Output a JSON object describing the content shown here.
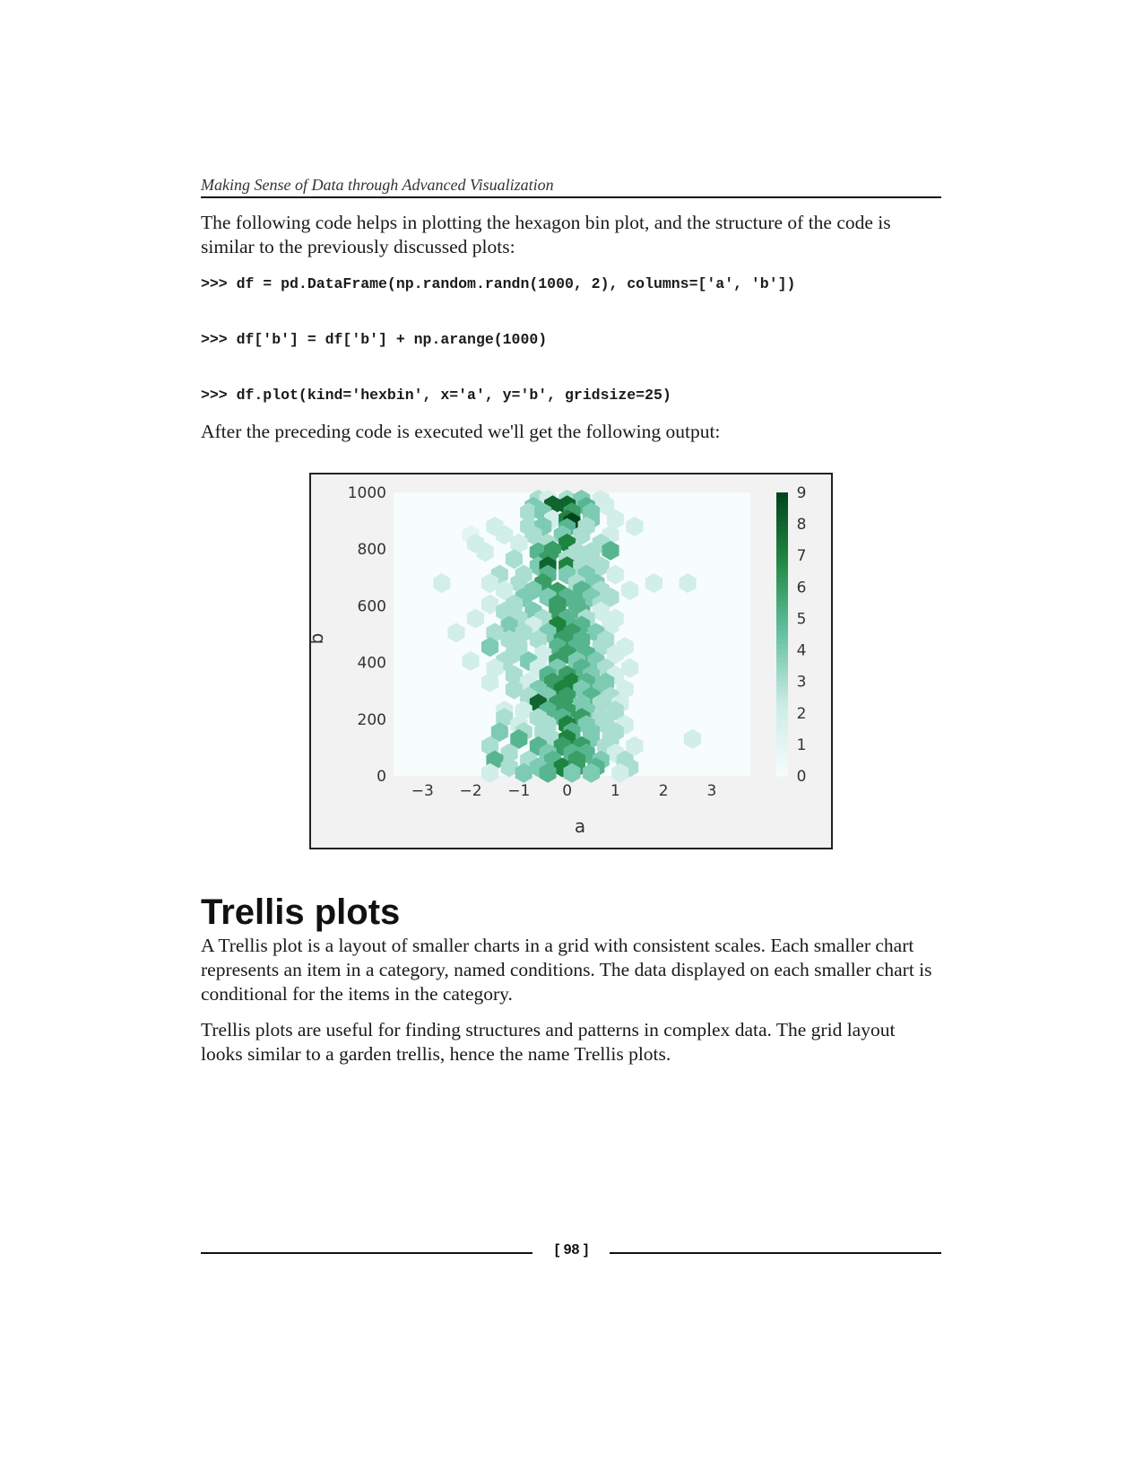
{
  "header": {
    "running_title": "Making Sense of Data through Advanced Visualization"
  },
  "intro_text": "The following code helps in plotting the hexagon bin plot, and the structure of the code is similar to the previously discussed plots:",
  "code_lines": [
    ">>> df = pd.DataFrame(np.random.randn(1000, 2), columns=['a', 'b'])",
    ">>> df['b'] = df['b'] + np.arange(1000)",
    ">>> df.plot(kind='hexbin', x='a', y='b', gridsize=25)"
  ],
  "output_text": "After the preceding code is executed we'll get the following output:",
  "chart_data": {
    "type": "heatmap",
    "subtype": "hexbin",
    "xlabel": "a",
    "ylabel": "b",
    "xlim": [
      -3.6,
      3.8
    ],
    "ylim": [
      0,
      1000
    ],
    "xticks": [
      "−3",
      "−2",
      "−1",
      "0",
      "1",
      "2",
      "3"
    ],
    "xtick_values": [
      -3,
      -2,
      -1,
      0,
      1,
      2,
      3
    ],
    "yticks": [
      "0",
      "200",
      "400",
      "600",
      "800",
      "1000"
    ],
    "ytick_values": [
      0,
      200,
      400,
      600,
      800,
      1000
    ],
    "colorbar": {
      "min": 0,
      "max": 9,
      "ticks": [
        "0",
        "1",
        "2",
        "3",
        "4",
        "5",
        "6",
        "7",
        "8",
        "9"
      ],
      "colors": [
        "#f7fcfd",
        "#ccece6",
        "#66c2a4",
        "#238b45",
        "#00441b"
      ]
    },
    "grid": false,
    "cells": [
      [
        -0.6,
        975,
        3
      ],
      [
        -0.4,
        975,
        2
      ],
      [
        0.0,
        975,
        3
      ],
      [
        0.3,
        975,
        4
      ],
      [
        0.7,
        975,
        2
      ],
      [
        -0.7,
        950,
        4
      ],
      [
        -0.3,
        955,
        8
      ],
      [
        0.0,
        955,
        8
      ],
      [
        0.4,
        950,
        5
      ],
      [
        0.8,
        955,
        2
      ],
      [
        -0.8,
        930,
        3
      ],
      [
        -0.5,
        930,
        4
      ],
      [
        0.1,
        930,
        6
      ],
      [
        0.5,
        930,
        4
      ],
      [
        -0.3,
        905,
        2
      ],
      [
        0.0,
        905,
        7
      ],
      [
        0.1,
        895,
        9
      ],
      [
        0.5,
        905,
        4
      ],
      [
        1.0,
        905,
        2
      ],
      [
        -1.5,
        880,
        2
      ],
      [
        -0.8,
        880,
        3
      ],
      [
        -0.5,
        880,
        4
      ],
      [
        0.0,
        875,
        5
      ],
      [
        0.4,
        880,
        3
      ],
      [
        1.4,
        880,
        2
      ],
      [
        -2.0,
        850,
        1
      ],
      [
        -1.3,
        850,
        2
      ],
      [
        -0.7,
        850,
        3
      ],
      [
        -0.1,
        850,
        4
      ],
      [
        0.3,
        850,
        3
      ],
      [
        0.9,
        850,
        2
      ],
      [
        -1.9,
        820,
        2
      ],
      [
        -1.0,
        820,
        2
      ],
      [
        -0.4,
        820,
        3
      ],
      [
        0.0,
        820,
        7
      ],
      [
        0.7,
        820,
        3
      ],
      [
        -1.7,
        790,
        2
      ],
      [
        -0.6,
        790,
        5
      ],
      [
        -0.3,
        795,
        6
      ],
      [
        0.2,
        790,
        3
      ],
      [
        0.5,
        790,
        3
      ],
      [
        0.9,
        795,
        5
      ],
      [
        -1.1,
        765,
        3
      ],
      [
        -0.4,
        765,
        6
      ],
      [
        0.0,
        765,
        3
      ],
      [
        0.5,
        765,
        3
      ],
      [
        -0.6,
        740,
        4
      ],
      [
        -0.4,
        740,
        8
      ],
      [
        0.0,
        740,
        7
      ],
      [
        0.3,
        740,
        3
      ],
      [
        0.7,
        740,
        3
      ],
      [
        -1.4,
        710,
        3
      ],
      [
        -0.9,
        710,
        3
      ],
      [
        -0.4,
        710,
        5
      ],
      [
        0.0,
        710,
        4
      ],
      [
        0.4,
        710,
        4
      ],
      [
        1.0,
        710,
        2
      ],
      [
        -2.6,
        680,
        2
      ],
      [
        -1.6,
        680,
        2
      ],
      [
        -1.0,
        680,
        3
      ],
      [
        -0.5,
        680,
        6
      ],
      [
        0.2,
        680,
        3
      ],
      [
        0.6,
        680,
        4
      ],
      [
        1.8,
        680,
        2
      ],
      [
        2.5,
        680,
        2
      ],
      [
        -1.3,
        655,
        2
      ],
      [
        -0.7,
        655,
        4
      ],
      [
        -0.2,
        650,
        6
      ],
      [
        0.3,
        655,
        5
      ],
      [
        0.7,
        655,
        3
      ],
      [
        1.3,
        655,
        2
      ],
      [
        -0.9,
        630,
        4
      ],
      [
        -0.4,
        630,
        4
      ],
      [
        0.0,
        630,
        5
      ],
      [
        0.5,
        630,
        4
      ],
      [
        0.9,
        630,
        3
      ],
      [
        -1.6,
        605,
        2
      ],
      [
        -1.1,
        605,
        3
      ],
      [
        -0.2,
        605,
        6
      ],
      [
        0.2,
        605,
        5
      ],
      [
        0.7,
        605,
        3
      ],
      [
        -1.3,
        580,
        3
      ],
      [
        -0.7,
        580,
        4
      ],
      [
        -0.2,
        580,
        6
      ],
      [
        0.3,
        580,
        5
      ],
      [
        0.7,
        580,
        2
      ],
      [
        -1.9,
        555,
        2
      ],
      [
        -1.0,
        555,
        3
      ],
      [
        -0.5,
        555,
        3
      ],
      [
        0.0,
        555,
        5
      ],
      [
        0.4,
        555,
        3
      ],
      [
        1.0,
        555,
        2
      ],
      [
        -1.2,
        530,
        4
      ],
      [
        -0.7,
        530,
        2
      ],
      [
        -0.2,
        530,
        7
      ],
      [
        0.3,
        530,
        5
      ],
      [
        0.9,
        530,
        2
      ],
      [
        -2.3,
        505,
        2
      ],
      [
        -1.5,
        505,
        3
      ],
      [
        -0.9,
        505,
        3
      ],
      [
        -0.4,
        505,
        4
      ],
      [
        0.1,
        505,
        6
      ],
      [
        0.6,
        505,
        4
      ],
      [
        -1.2,
        480,
        3
      ],
      [
        -0.6,
        480,
        3
      ],
      [
        -0.1,
        480,
        6
      ],
      [
        0.3,
        480,
        5
      ],
      [
        0.8,
        480,
        3
      ],
      [
        -1.6,
        455,
        4
      ],
      [
        -1.0,
        455,
        3
      ],
      [
        -0.2,
        455,
        5
      ],
      [
        0.2,
        455,
        5
      ],
      [
        0.7,
        455,
        3
      ],
      [
        1.2,
        455,
        2
      ],
      [
        -1.1,
        430,
        3
      ],
      [
        -0.5,
        430,
        2
      ],
      [
        0.0,
        430,
        6
      ],
      [
        0.4,
        430,
        5
      ],
      [
        1.0,
        430,
        2
      ],
      [
        -2.0,
        405,
        2
      ],
      [
        -1.3,
        405,
        3
      ],
      [
        -0.8,
        405,
        4
      ],
      [
        -0.2,
        405,
        6
      ],
      [
        0.2,
        405,
        4
      ],
      [
        0.6,
        405,
        4
      ],
      [
        -1.5,
        380,
        2
      ],
      [
        -0.6,
        380,
        2
      ],
      [
        -0.2,
        380,
        4
      ],
      [
        0.3,
        380,
        5
      ],
      [
        0.8,
        380,
        3
      ],
      [
        1.3,
        380,
        2
      ],
      [
        -1.1,
        355,
        3
      ],
      [
        -0.4,
        355,
        5
      ],
      [
        0.0,
        355,
        6
      ],
      [
        0.5,
        355,
        4
      ],
      [
        1.0,
        355,
        2
      ],
      [
        -1.6,
        330,
        2
      ],
      [
        -0.8,
        330,
        2
      ],
      [
        -0.3,
        330,
        6
      ],
      [
        0.1,
        330,
        7
      ],
      [
        0.4,
        330,
        5
      ],
      [
        0.8,
        330,
        4
      ],
      [
        -1.1,
        305,
        3
      ],
      [
        -0.6,
        305,
        4
      ],
      [
        -0.1,
        305,
        7
      ],
      [
        0.3,
        305,
        4
      ],
      [
        0.7,
        305,
        4
      ],
      [
        1.2,
        305,
        2
      ],
      [
        -0.8,
        280,
        3
      ],
      [
        -0.4,
        280,
        4
      ],
      [
        0.0,
        280,
        6
      ],
      [
        0.5,
        280,
        5
      ],
      [
        0.9,
        280,
        3
      ],
      [
        -0.6,
        255,
        8
      ],
      [
        -0.2,
        255,
        6
      ],
      [
        0.3,
        255,
        4
      ],
      [
        0.7,
        255,
        3
      ],
      [
        1.1,
        255,
        2
      ],
      [
        -1.3,
        230,
        2
      ],
      [
        -0.9,
        230,
        2
      ],
      [
        -0.4,
        230,
        5
      ],
      [
        0.0,
        230,
        6
      ],
      [
        0.4,
        230,
        4
      ],
      [
        1.0,
        230,
        3
      ],
      [
        -1.3,
        205,
        3
      ],
      [
        -0.6,
        205,
        3
      ],
      [
        -0.1,
        205,
        5
      ],
      [
        0.3,
        205,
        6
      ],
      [
        0.7,
        205,
        3
      ],
      [
        -1.0,
        180,
        2
      ],
      [
        -0.4,
        180,
        3
      ],
      [
        0.0,
        180,
        7
      ],
      [
        0.4,
        180,
        4
      ],
      [
        0.8,
        180,
        3
      ],
      [
        1.2,
        180,
        2
      ],
      [
        -1.4,
        155,
        4
      ],
      [
        -0.9,
        155,
        3
      ],
      [
        -0.5,
        155,
        3
      ],
      [
        0.1,
        155,
        5
      ],
      [
        0.5,
        155,
        4
      ],
      [
        1.0,
        155,
        3
      ],
      [
        -1.0,
        130,
        5
      ],
      [
        -0.3,
        130,
        3
      ],
      [
        0.0,
        130,
        7
      ],
      [
        0.5,
        130,
        4
      ],
      [
        0.9,
        130,
        3
      ],
      [
        2.6,
        130,
        2
      ],
      [
        -1.6,
        105,
        3
      ],
      [
        -0.6,
        105,
        5
      ],
      [
        -0.1,
        105,
        6
      ],
      [
        0.3,
        105,
        6
      ],
      [
        0.8,
        105,
        3
      ],
      [
        1.4,
        105,
        2
      ],
      [
        -1.2,
        80,
        3
      ],
      [
        -0.4,
        80,
        4
      ],
      [
        0.1,
        80,
        5
      ],
      [
        0.4,
        80,
        5
      ],
      [
        1.0,
        80,
        2
      ],
      [
        -1.5,
        55,
        5
      ],
      [
        -0.8,
        55,
        3
      ],
      [
        -0.3,
        55,
        5
      ],
      [
        0.2,
        55,
        6
      ],
      [
        0.7,
        55,
        4
      ],
      [
        1.2,
        55,
        3
      ],
      [
        -1.2,
        30,
        3
      ],
      [
        -0.6,
        30,
        4
      ],
      [
        -0.1,
        30,
        7
      ],
      [
        0.2,
        30,
        6
      ],
      [
        0.6,
        30,
        5
      ],
      [
        1.3,
        30,
        3
      ],
      [
        -1.6,
        10,
        2
      ],
      [
        -0.9,
        10,
        4
      ],
      [
        -0.4,
        10,
        5
      ],
      [
        0.1,
        10,
        4
      ],
      [
        0.5,
        10,
        4
      ],
      [
        1.1,
        10,
        2
      ]
    ]
  },
  "section": {
    "heading": "Trellis plots",
    "paragraphs": [
      "A Trellis plot is a layout of smaller charts in a grid with consistent scales. Each smaller chart represents an item in a category, named conditions. The data displayed on each smaller chart is conditional for the items in the category.",
      "Trellis plots are useful for finding structures and patterns in complex data. The grid layout looks similar to a garden trellis, hence the name Trellis plots."
    ]
  },
  "footer": {
    "page_number": "[ 98 ]"
  }
}
